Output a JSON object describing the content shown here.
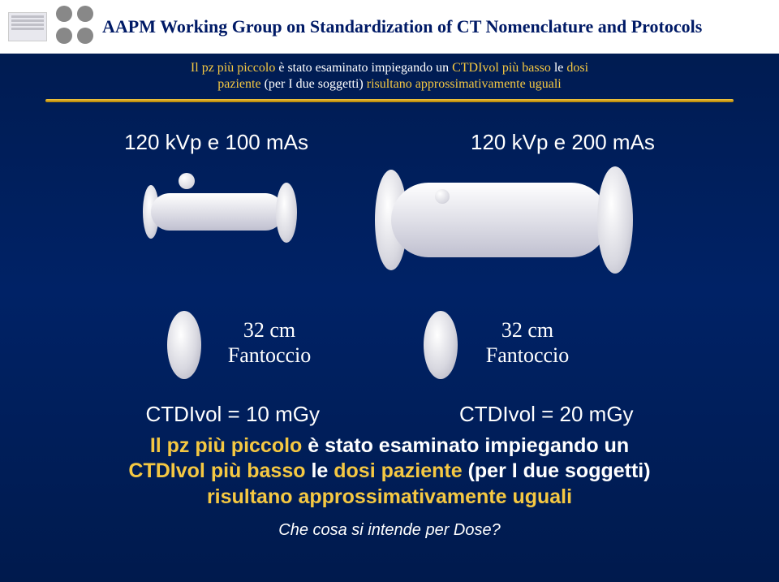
{
  "header": {
    "title": "AAPM Working Group on Standardization of CT Nomenclature and Protocols"
  },
  "subtitle": {
    "line1_prefix": "Il pz più piccolo ",
    "line1_mid": "è stato esaminato impiegando un ",
    "line1_suffix": "CTDIvol più basso ",
    "line1_end_white": "le ",
    "line1_end_yellow": "dosi",
    "line2_prefix": "paziente ",
    "line2_mid": "(per I due soggetti) ",
    "line2_suffix": "risultano approssimativamente uguali"
  },
  "params": {
    "left": "120 kVp e 100 mAs",
    "right": "120 kVp e 200 mAs"
  },
  "disc": {
    "size": "32 cm",
    "name": "Fantoccio"
  },
  "ctdi": {
    "left": "CTDIvol = 10 mGy",
    "right": "CTDIvol = 20 mGy"
  },
  "summary": {
    "l1_a": "Il pz più piccolo ",
    "l1_b": "è stato esaminato impiegando un",
    "l2_a": "CTDIvol più basso ",
    "l2_b": "le ",
    "l2_c": "dosi paziente ",
    "l2_d": "(per I due soggetti)",
    "l3": "risultano approssimativamente uguali"
  },
  "footer": "Che cosa si intende per Dose?"
}
